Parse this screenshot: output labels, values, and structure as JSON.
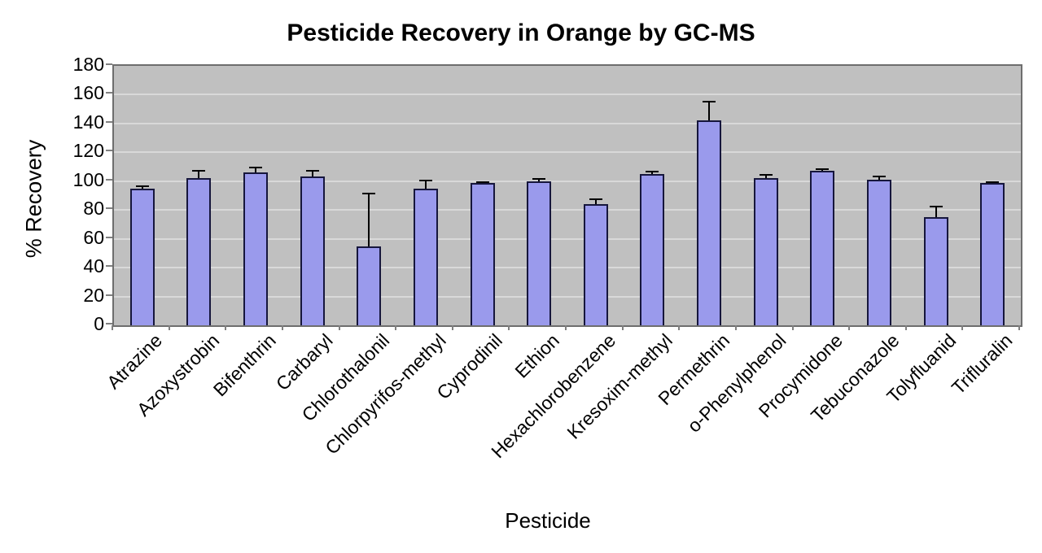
{
  "chart_data": {
    "type": "bar",
    "title": "Pesticide Recovery in Orange by GC-MS",
    "xlabel": "Pesticide",
    "ylabel": "% Recovery",
    "ylim": [
      0,
      180
    ],
    "yticks": [
      0,
      20,
      40,
      60,
      80,
      100,
      120,
      140,
      160,
      180
    ],
    "grid": true,
    "legend": "none",
    "categories": [
      "Atrazine",
      "Azoxystrobin",
      "Bifenthrin",
      "Carbaryl",
      "Chlorothalonil",
      "Chlorpyrifos-methyl",
      "Cyprodinil",
      "Ethion",
      "Hexachlorobenzene",
      "Kresoxim-methyl",
      "Permethrin",
      "o-Phenylphenol",
      "Procymidone",
      "Tebuconazole",
      "Tolyfluanid",
      "Trifluralin"
    ],
    "values": [
      95,
      102,
      106,
      103,
      55,
      95,
      99,
      100,
      84,
      105,
      142,
      102,
      107,
      101,
      75,
      99
    ],
    "error_plus": [
      2,
      6,
      4,
      5,
      37,
      6,
      1,
      2,
      4,
      2,
      14,
      3,
      2,
      3,
      8,
      1
    ],
    "colors": {
      "bar_fill": "#9a9aec",
      "bar_border": "#16163c",
      "plot_background": "#c0c0c0",
      "gridline": "#d9d9d9",
      "plot_border": "#6e6e6e",
      "error_bar": "#000000"
    }
  }
}
